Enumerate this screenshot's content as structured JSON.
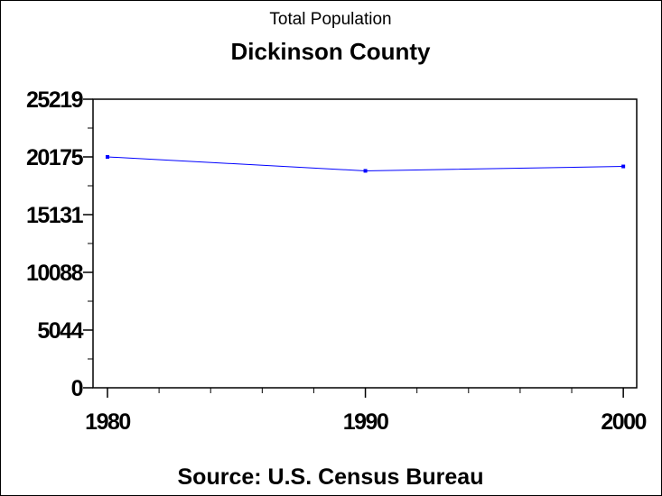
{
  "chart_data": {
    "type": "line",
    "title": "Dickinson County",
    "subtitle": "Total Population",
    "footnote": "Source: U.S. Census Bureau",
    "xlabel": "",
    "ylabel": "",
    "x": [
      1980,
      1990,
      2000
    ],
    "series": [
      {
        "values": [
          20175,
          18958,
          19344
        ],
        "color": "#0000ff"
      }
    ],
    "xlim": [
      1979.44,
      2000.52
    ],
    "xticks": [
      "1980",
      "1990",
      "2000"
    ],
    "ylim": [
      0,
      25219
    ],
    "yticks": [
      "0",
      "5044",
      "10088",
      "15131",
      "20175",
      "25219"
    ],
    "grid": false
  }
}
